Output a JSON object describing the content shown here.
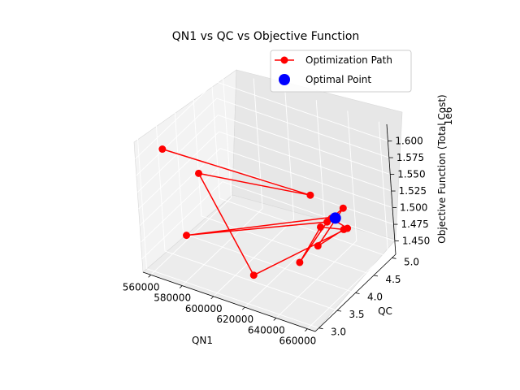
{
  "chart_data": {
    "type": "scatter",
    "projection": "3d",
    "title": "QN1 vs QC vs Objective Function",
    "xlabel": "QN1",
    "ylabel": "QC",
    "zlabel": "Objective Function (Total Cost)",
    "z_offset_text": "1e6",
    "xlim": [
      555000,
      665000
    ],
    "ylim": [
      2.9,
      5.1
    ],
    "zlim": [
      1430000,
      1625000
    ],
    "x_ticks": [
      "560000",
      "580000",
      "600000",
      "620000",
      "640000",
      "660000"
    ],
    "y_ticks": [
      "3.0",
      "3.5",
      "4.0",
      "4.5",
      "5.0"
    ],
    "z_ticks": [
      "1.450",
      "1.475",
      "1.500",
      "1.525",
      "1.550",
      "1.575",
      "1.600"
    ],
    "grid": true,
    "legend_position": "top-right",
    "series": [
      {
        "name": "Optimization Path",
        "color": "#ff0000",
        "marker": "circle",
        "line": true,
        "points": [
          {
            "x": 563000,
            "y": 3.3,
            "z": 1600000
          },
          {
            "x": 622000,
            "y": 4.7,
            "z": 1505000
          },
          {
            "x": 578000,
            "y": 3.6,
            "z": 1560000
          },
          {
            "x": 612000,
            "y": 3.5,
            "z": 1440000
          },
          {
            "x": 655000,
            "y": 4.3,
            "z": 1503000
          },
          {
            "x": 645000,
            "y": 4.3,
            "z": 1510000
          },
          {
            "x": 648000,
            "y": 4.5,
            "z": 1517000
          },
          {
            "x": 640000,
            "y": 4.1,
            "z": 1475000
          },
          {
            "x": 650000,
            "y": 4.4,
            "z": 1492000
          },
          {
            "x": 640000,
            "y": 4.2,
            "z": 1498000
          },
          {
            "x": 635000,
            "y": 3.8,
            "z": 1462000
          },
          {
            "x": 642000,
            "y": 4.3,
            "z": 1502000
          },
          {
            "x": 580000,
            "y": 3.1,
            "z": 1495000
          },
          {
            "x": 645000,
            "y": 4.4,
            "z": 1507000
          }
        ]
      },
      {
        "name": "Optimal Point",
        "color": "#0000ff",
        "marker": "circle",
        "line": false,
        "points": [
          {
            "x": 645000,
            "y": 4.4,
            "z": 1505000
          }
        ]
      }
    ]
  }
}
